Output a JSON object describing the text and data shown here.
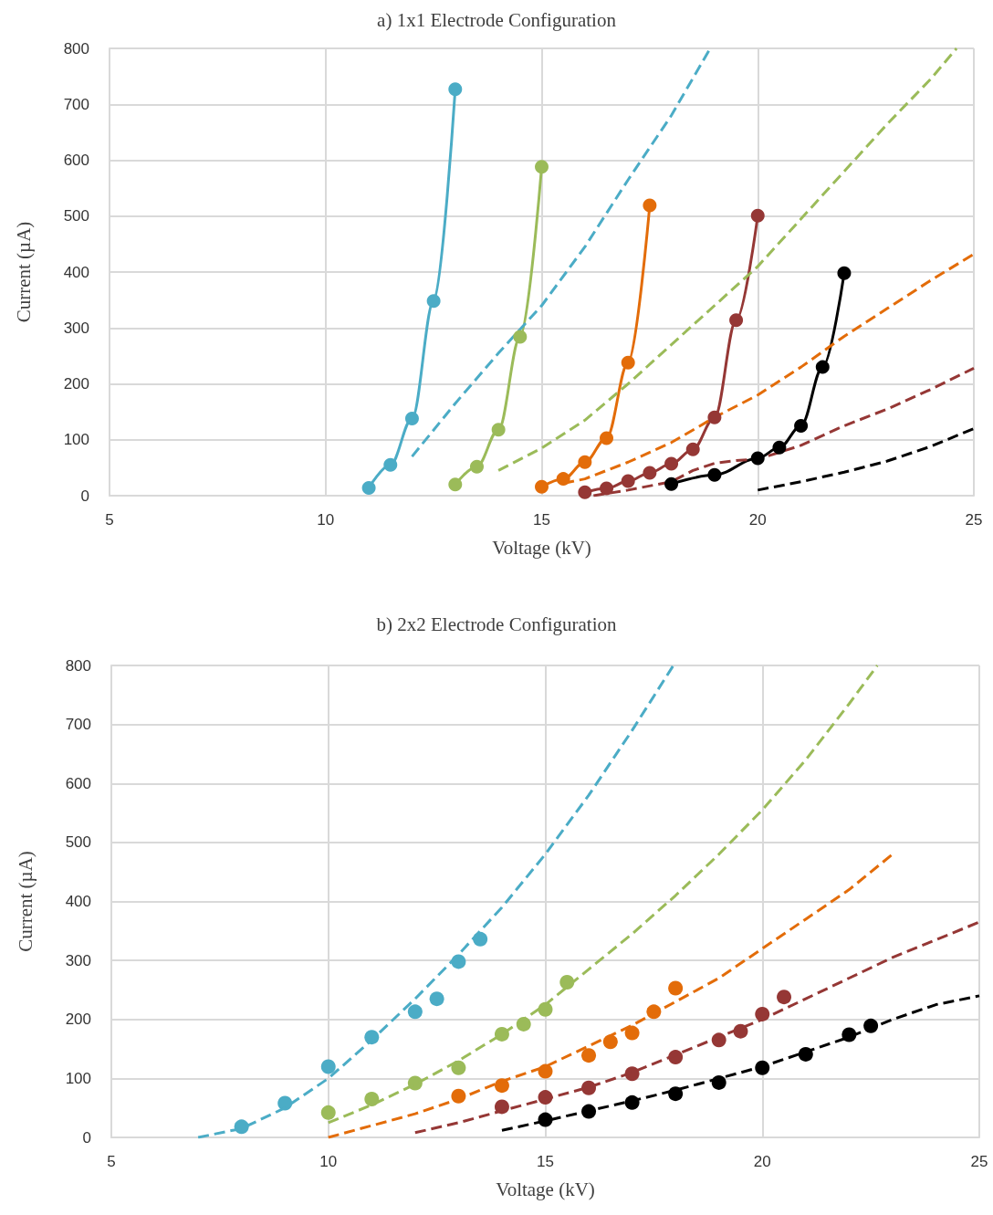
{
  "chart_data": [
    {
      "type": "line",
      "title": "a) 1x1 Electrode Configuration",
      "xlabel": "Voltage (kV)",
      "ylabel": "Current (µA)",
      "xlim": [
        5,
        25
      ],
      "ylim": [
        0,
        800
      ],
      "xticks": [
        5,
        10,
        15,
        20,
        25
      ],
      "yticks": [
        0,
        100,
        200,
        300,
        400,
        500,
        600,
        700,
        800
      ],
      "grid": true,
      "series": [
        {
          "color": "#4bacc6",
          "marker": "circle",
          "line_style": "solid",
          "x": [
            11,
            11.5,
            12,
            12.5,
            13
          ],
          "values": [
            14,
            55,
            138,
            348,
            727
          ]
        },
        {
          "color": "#9bbb59",
          "marker": "circle",
          "line_style": "solid",
          "x": [
            13,
            13.5,
            14,
            14.5,
            15
          ],
          "values": [
            20,
            52,
            118,
            284,
            588
          ]
        },
        {
          "color": "#e36c09",
          "marker": "circle",
          "line_style": "solid",
          "x": [
            15,
            15.5,
            16,
            16.5,
            17,
            17.5
          ],
          "values": [
            16,
            30,
            60,
            103,
            238,
            519
          ]
        },
        {
          "color": "#953735",
          "marker": "circle",
          "line_style": "solid",
          "x": [
            16,
            16.5,
            17,
            17.5,
            18,
            18.5,
            19,
            19.5,
            20
          ],
          "values": [
            6,
            13,
            26,
            41,
            57,
            83,
            140,
            314,
            501
          ]
        },
        {
          "color": "#000000",
          "marker": "circle",
          "line_style": "solid",
          "x": [
            18,
            19,
            20,
            20.5,
            21,
            21.5,
            22
          ],
          "values": [
            21,
            37,
            67,
            86,
            125,
            230,
            398
          ]
        },
        {
          "type": "line",
          "color": "#4bacc6",
          "marker": "none",
          "line_style": "dashed",
          "x": [
            12,
            13,
            14,
            15,
            16,
            17,
            18,
            18.9
          ],
          "values": [
            70,
            165,
            255,
            340,
            445,
            565,
            680,
            800
          ]
        },
        {
          "type": "line",
          "color": "#9bbb59",
          "marker": "none",
          "line_style": "dashed",
          "x": [
            14,
            15,
            16,
            17,
            18,
            19,
            20,
            21,
            22,
            23,
            24,
            24.6
          ],
          "values": [
            45,
            85,
            135,
            200,
            270,
            340,
            410,
            495,
            580,
            665,
            745,
            800
          ]
        },
        {
          "type": "line",
          "color": "#e36c09",
          "marker": "none",
          "line_style": "dashed",
          "x": [
            15.5,
            16,
            17,
            18,
            19,
            20,
            21,
            22,
            23,
            24,
            25
          ],
          "values": [
            22,
            30,
            60,
            95,
            140,
            180,
            230,
            285,
            335,
            385,
            432
          ]
        },
        {
          "type": "line",
          "color": "#953735",
          "marker": "none",
          "line_style": "dashed",
          "x": [
            16.2,
            17,
            18,
            18.5,
            19,
            19.5,
            20,
            21,
            22,
            23,
            24,
            25
          ],
          "values": [
            0,
            10,
            25,
            45,
            58,
            63,
            65,
            90,
            125,
            155,
            190,
            228
          ]
        },
        {
          "type": "line",
          "color": "#000000",
          "marker": "none",
          "line_style": "dashed",
          "x": [
            20,
            21,
            22,
            23,
            24,
            25
          ],
          "values": [
            10,
            25,
            42,
            62,
            88,
            120
          ]
        }
      ]
    },
    {
      "type": "scatter",
      "title": "b) 2x2 Electrode Configuration",
      "xlabel": "Voltage (kV)",
      "ylabel": "Current (µA)",
      "xlim": [
        5,
        25
      ],
      "ylim": [
        0,
        800
      ],
      "xticks": [
        5,
        10,
        15,
        20,
        25
      ],
      "yticks": [
        0,
        100,
        200,
        300,
        400,
        500,
        600,
        700,
        800
      ],
      "grid": true,
      "series": [
        {
          "color": "#4bacc6",
          "marker": "circle",
          "x": [
            8,
            9,
            10,
            11,
            12,
            12.5,
            13,
            13.5
          ],
          "values": [
            18,
            58,
            120,
            170,
            213,
            235,
            298,
            336
          ]
        },
        {
          "color": "#9bbb59",
          "marker": "circle",
          "x": [
            10,
            11,
            12,
            13,
            14,
            14.5,
            15,
            15.5
          ],
          "values": [
            42,
            65,
            92,
            118,
            175,
            192,
            217,
            263
          ]
        },
        {
          "color": "#e36c09",
          "marker": "circle",
          "x": [
            13,
            14,
            15,
            16,
            16.5,
            17,
            17.5,
            18
          ],
          "values": [
            70,
            88,
            112,
            139,
            162,
            177,
            213,
            253
          ]
        },
        {
          "color": "#953735",
          "marker": "circle",
          "x": [
            14,
            15,
            16,
            17,
            18,
            19,
            19.5,
            20,
            20.5
          ],
          "values": [
            52,
            68,
            84,
            108,
            136,
            165,
            180,
            209,
            238
          ]
        },
        {
          "color": "#000000",
          "marker": "circle",
          "x": [
            15,
            16,
            17,
            18,
            19,
            20,
            21,
            22,
            22.5
          ],
          "values": [
            30,
            44,
            59,
            74,
            93,
            118,
            141,
            174,
            189
          ]
        },
        {
          "type": "line",
          "color": "#4bacc6",
          "marker": "none",
          "line_style": "dashed",
          "x": [
            7,
            8,
            9,
            10,
            11,
            12,
            13,
            14,
            15,
            16,
            17,
            17.95
          ],
          "values": [
            0,
            15,
            50,
            100,
            165,
            235,
            310,
            390,
            480,
            580,
            690,
            800
          ]
        },
        {
          "type": "line",
          "color": "#9bbb59",
          "marker": "none",
          "line_style": "dashed",
          "x": [
            10,
            11,
            12,
            13,
            14,
            15,
            16,
            17,
            18,
            19,
            20,
            21,
            22,
            22.65
          ],
          "values": [
            25,
            55,
            90,
            130,
            175,
            225,
            285,
            345,
            410,
            480,
            555,
            640,
            735,
            800
          ]
        },
        {
          "type": "line",
          "color": "#e36c09",
          "marker": "none",
          "line_style": "dashed",
          "x": [
            10,
            11,
            12,
            13,
            14,
            15,
            16,
            17,
            18,
            19,
            20,
            21,
            22,
            23
          ],
          "values": [
            0,
            20,
            40,
            65,
            95,
            120,
            155,
            190,
            230,
            270,
            320,
            370,
            420,
            480
          ]
        },
        {
          "type": "line",
          "color": "#953735",
          "marker": "none",
          "line_style": "dashed",
          "x": [
            12,
            13,
            14,
            15,
            16,
            17,
            18,
            19,
            20,
            21,
            22,
            23,
            24,
            25
          ],
          "values": [
            8,
            25,
            45,
            65,
            85,
            110,
            140,
            170,
            200,
            235,
            270,
            305,
            335,
            365
          ]
        },
        {
          "type": "line",
          "color": "#000000",
          "marker": "none",
          "line_style": "dashed",
          "x": [
            14,
            15,
            16,
            17,
            18,
            19,
            20,
            21,
            22,
            23,
            24,
            25
          ],
          "values": [
            12,
            28,
            45,
            62,
            80,
            100,
            120,
            145,
            170,
            200,
            225,
            240
          ]
        }
      ]
    }
  ]
}
